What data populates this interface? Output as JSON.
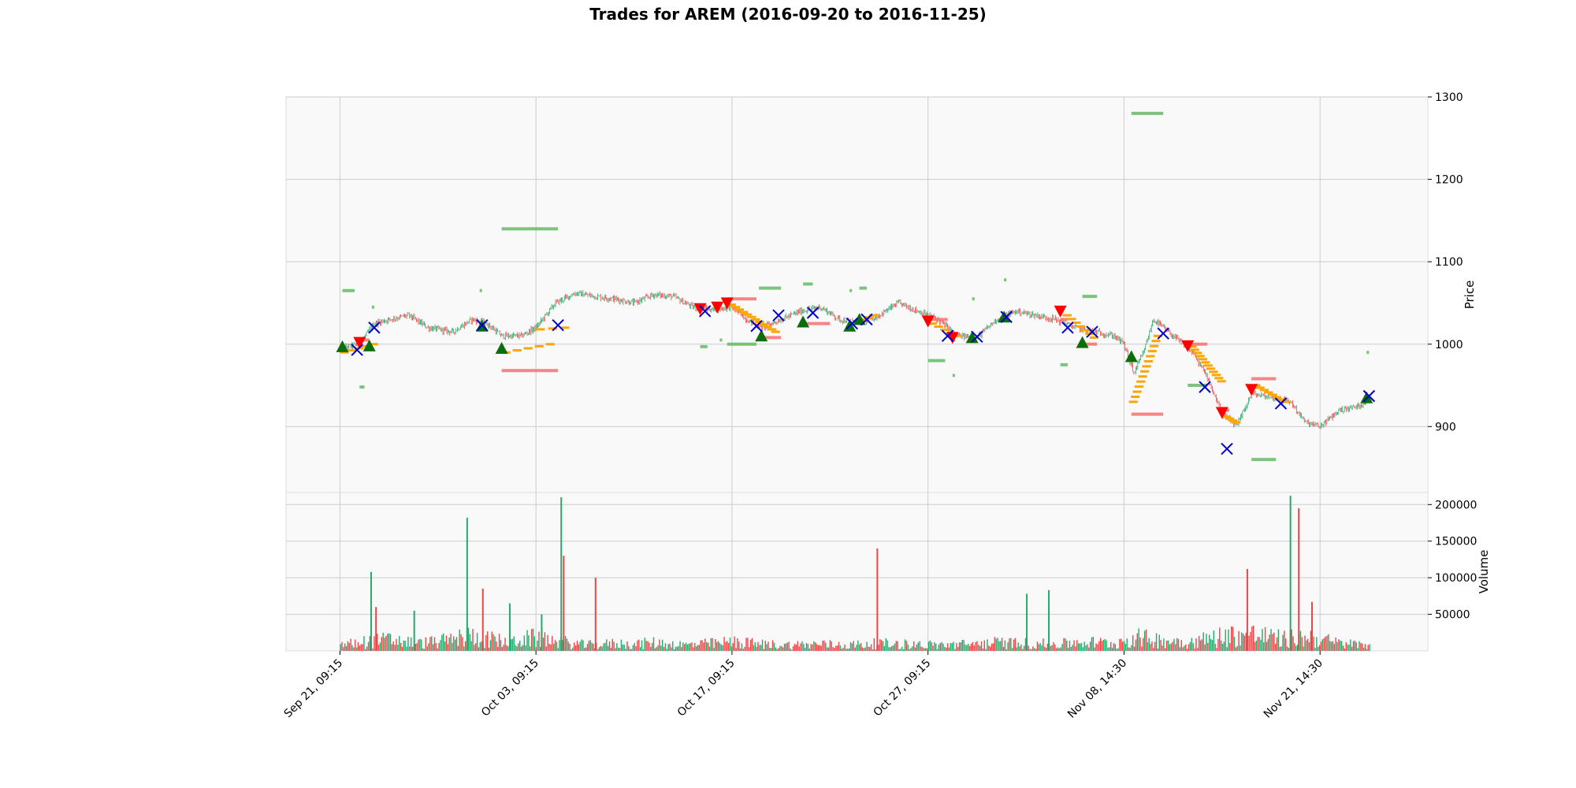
{
  "chart_data": {
    "type": "candlestick",
    "title": "Trades for AREM (2016-09-20 to 2016-11-25)",
    "price_axis": {
      "label": "Price",
      "ticks": [
        900,
        1000,
        1100,
        1200,
        1300
      ],
      "range": [
        820,
        1300
      ]
    },
    "volume_axis": {
      "label": "Volume",
      "ticks": [
        50000,
        100000,
        150000,
        200000
      ],
      "range": [
        0,
        210000
      ]
    },
    "x_tick_labels": [
      "Sep 21, 09:15",
      "Oct 03, 09:15",
      "Oct 17, 09:15",
      "Oct 27, 09:15",
      "Nov 08, 14:30",
      "Nov 21, 14:30"
    ],
    "x_tick_positions": [
      0,
      400,
      800,
      1200,
      1600,
      2000
    ],
    "x_range": [
      -110,
      2220
    ],
    "grid": true,
    "colors": {
      "up": "#26a96c",
      "down": "#ef4444",
      "entry_long": "#0a6e0a",
      "entry_short": "#ff0000",
      "exit": "#0000cc",
      "trail": "#ffa500",
      "target": "#5cb85c",
      "stop": "#f87171",
      "panel_bg": "#f9f9f9",
      "grid": "#cccccc"
    },
    "price_path": [
      [
        0,
        995
      ],
      [
        40,
        1000
      ],
      [
        70,
        1025
      ],
      [
        100,
        1030
      ],
      [
        140,
        1035
      ],
      [
        180,
        1020
      ],
      [
        230,
        1015
      ],
      [
        270,
        1030
      ],
      [
        300,
        1025
      ],
      [
        330,
        1010
      ],
      [
        370,
        1010
      ],
      [
        400,
        1020
      ],
      [
        440,
        1050
      ],
      [
        480,
        1062
      ],
      [
        520,
        1058
      ],
      [
        560,
        1055
      ],
      [
        600,
        1050
      ],
      [
        640,
        1060
      ],
      [
        680,
        1058
      ],
      [
        720,
        1045
      ],
      [
        760,
        1042
      ],
      [
        800,
        1045
      ],
      [
        830,
        1030
      ],
      [
        860,
        1020
      ],
      [
        900,
        1030
      ],
      [
        940,
        1040
      ],
      [
        980,
        1045
      ],
      [
        1020,
        1030
      ],
      [
        1060,
        1025
      ],
      [
        1100,
        1035
      ],
      [
        1140,
        1050
      ],
      [
        1180,
        1040
      ],
      [
        1220,
        1030
      ],
      [
        1260,
        1010
      ],
      [
        1300,
        1008
      ],
      [
        1340,
        1030
      ],
      [
        1380,
        1040
      ],
      [
        1420,
        1035
      ],
      [
        1460,
        1030
      ],
      [
        1500,
        1020
      ],
      [
        1540,
        1015
      ],
      [
        1580,
        1010
      ],
      [
        1600,
        1000
      ],
      [
        1620,
        965
      ],
      [
        1640,
        990
      ],
      [
        1660,
        1030
      ],
      [
        1700,
        1010
      ],
      [
        1740,
        990
      ],
      [
        1770,
        960
      ],
      [
        1800,
        915
      ],
      [
        1830,
        900
      ],
      [
        1860,
        940
      ],
      [
        1900,
        935
      ],
      [
        1940,
        930
      ],
      [
        1970,
        905
      ],
      [
        2000,
        900
      ],
      [
        2040,
        920
      ],
      [
        2080,
        925
      ],
      [
        2100,
        935
      ]
    ],
    "volume_path": [
      [
        0,
        8000
      ],
      [
        50,
        12000
      ],
      [
        100,
        15000
      ],
      [
        160,
        10000
      ],
      [
        220,
        14000
      ],
      [
        260,
        20000
      ],
      [
        300,
        16000
      ],
      [
        340,
        12000
      ],
      [
        400,
        18000
      ],
      [
        440,
        14000
      ],
      [
        480,
        9000
      ],
      [
        520,
        8000
      ],
      [
        560,
        10000
      ],
      [
        600,
        9000
      ],
      [
        640,
        11000
      ],
      [
        700,
        8000
      ],
      [
        760,
        10000
      ],
      [
        800,
        12000
      ],
      [
        860,
        9000
      ],
      [
        920,
        8000
      ],
      [
        980,
        9000
      ],
      [
        1040,
        8000
      ],
      [
        1100,
        10000
      ],
      [
        1160,
        9000
      ],
      [
        1220,
        8000
      ],
      [
        1280,
        9000
      ],
      [
        1340,
        11000
      ],
      [
        1400,
        10000
      ],
      [
        1460,
        9000
      ],
      [
        1520,
        12000
      ],
      [
        1580,
        10000
      ],
      [
        1620,
        18000
      ],
      [
        1680,
        14000
      ],
      [
        1740,
        12000
      ],
      [
        1800,
        20000
      ],
      [
        1860,
        22000
      ],
      [
        1920,
        16000
      ],
      [
        1980,
        18000
      ],
      [
        2040,
        10000
      ],
      [
        2100,
        8000
      ]
    ],
    "volume_spikes": [
      {
        "x": 62,
        "v": 108000,
        "dir": "up"
      },
      {
        "x": 72,
        "v": 60000,
        "dir": "down"
      },
      {
        "x": 150,
        "v": 55000,
        "dir": "up"
      },
      {
        "x": 258,
        "v": 182000,
        "dir": "up"
      },
      {
        "x": 290,
        "v": 85000,
        "dir": "down"
      },
      {
        "x": 345,
        "v": 65000,
        "dir": "up"
      },
      {
        "x": 410,
        "v": 50000,
        "dir": "up"
      },
      {
        "x": 450,
        "v": 210000,
        "dir": "up"
      },
      {
        "x": 455,
        "v": 130000,
        "dir": "down"
      },
      {
        "x": 520,
        "v": 100000,
        "dir": "down"
      },
      {
        "x": 1095,
        "v": 140000,
        "dir": "down"
      },
      {
        "x": 1400,
        "v": 78000,
        "dir": "up"
      },
      {
        "x": 1445,
        "v": 83000,
        "dir": "up"
      },
      {
        "x": 1850,
        "v": 112000,
        "dir": "down"
      },
      {
        "x": 1938,
        "v": 212000,
        "dir": "up"
      },
      {
        "x": 1955,
        "v": 195000,
        "dir": "down"
      },
      {
        "x": 1982,
        "v": 67000,
        "dir": "down"
      }
    ],
    "entries_long": [
      {
        "x": 5,
        "y": 997
      },
      {
        "x": 60,
        "y": 998
      },
      {
        "x": 290,
        "y": 1022
      },
      {
        "x": 330,
        "y": 995
      },
      {
        "x": 860,
        "y": 1010
      },
      {
        "x": 945,
        "y": 1027
      },
      {
        "x": 1040,
        "y": 1022
      },
      {
        "x": 1060,
        "y": 1030
      },
      {
        "x": 1290,
        "y": 1008
      },
      {
        "x": 1355,
        "y": 1033
      },
      {
        "x": 1515,
        "y": 1002
      },
      {
        "x": 1615,
        "y": 985
      },
      {
        "x": 2095,
        "y": 935
      }
    ],
    "entries_short": [
      {
        "x": 40,
        "y": 1002
      },
      {
        "x": 735,
        "y": 1043
      },
      {
        "x": 770,
        "y": 1045
      },
      {
        "x": 790,
        "y": 1050
      },
      {
        "x": 1200,
        "y": 1028
      },
      {
        "x": 1250,
        "y": 1008
      },
      {
        "x": 1470,
        "y": 1040
      },
      {
        "x": 1730,
        "y": 998
      },
      {
        "x": 1800,
        "y": 917
      },
      {
        "x": 1860,
        "y": 945
      }
    ],
    "exits": [
      {
        "x": 35,
        "y": 993
      },
      {
        "x": 70,
        "y": 1020
      },
      {
        "x": 290,
        "y": 1023
      },
      {
        "x": 445,
        "y": 1023
      },
      {
        "x": 745,
        "y": 1040
      },
      {
        "x": 850,
        "y": 1022
      },
      {
        "x": 895,
        "y": 1035
      },
      {
        "x": 965,
        "y": 1038
      },
      {
        "x": 1045,
        "y": 1025
      },
      {
        "x": 1075,
        "y": 1030
      },
      {
        "x": 1240,
        "y": 1010
      },
      {
        "x": 1300,
        "y": 1009
      },
      {
        "x": 1360,
        "y": 1033
      },
      {
        "x": 1485,
        "y": 1020
      },
      {
        "x": 1535,
        "y": 1015
      },
      {
        "x": 1680,
        "y": 1013
      },
      {
        "x": 1765,
        "y": 948
      },
      {
        "x": 1810,
        "y": 873
      },
      {
        "x": 1920,
        "y": 928
      },
      {
        "x": 2100,
        "y": 937
      }
    ],
    "trail_bursts": [
      {
        "x0": 0,
        "y0": 990,
        "x1": 60,
        "y1": 1000,
        "n": 5
      },
      {
        "x0": 330,
        "y0": 990,
        "x1": 420,
        "y1": 1000,
        "n": 5
      },
      {
        "x0": 400,
        "y0": 1018,
        "x1": 450,
        "y1": 1020,
        "n": 3
      },
      {
        "x0": 790,
        "y0": 1048,
        "x1": 880,
        "y1": 1015,
        "n": 12
      },
      {
        "x0": 1045,
        "y0": 1025,
        "x1": 1080,
        "y1": 1035,
        "n": 5
      },
      {
        "x0": 1200,
        "y0": 1025,
        "x1": 1250,
        "y1": 1010,
        "n": 5
      },
      {
        "x0": 1475,
        "y0": 1035,
        "x1": 1530,
        "y1": 1008,
        "n": 7
      },
      {
        "x0": 1610,
        "y0": 930,
        "x1": 1660,
        "y1": 1010,
        "n": 14
      },
      {
        "x0": 1730,
        "y0": 997,
        "x1": 1790,
        "y1": 955,
        "n": 12
      },
      {
        "x0": 1800,
        "y0": 912,
        "x1": 1820,
        "y1": 905,
        "n": 4
      },
      {
        "x0": 1860,
        "y0": 950,
        "x1": 1920,
        "y1": 930,
        "n": 8
      }
    ],
    "target_levels": [
      {
        "x0": 5,
        "x1": 30,
        "y": 1065
      },
      {
        "x0": 40,
        "x1": 50,
        "y": 948
      },
      {
        "x0": 65,
        "x1": 70,
        "y": 1045
      },
      {
        "x0": 285,
        "x1": 290,
        "y": 1065
      },
      {
        "x0": 330,
        "x1": 445,
        "y": 1140
      },
      {
        "x0": 735,
        "x1": 750,
        "y": 997
      },
      {
        "x0": 775,
        "x1": 780,
        "y": 1005
      },
      {
        "x0": 790,
        "x1": 850,
        "y": 1000
      },
      {
        "x0": 855,
        "x1": 900,
        "y": 1068
      },
      {
        "x0": 945,
        "x1": 965,
        "y": 1073
      },
      {
        "x0": 1040,
        "x1": 1045,
        "y": 1065
      },
      {
        "x0": 1060,
        "x1": 1075,
        "y": 1068
      },
      {
        "x0": 1200,
        "x1": 1235,
        "y": 980
      },
      {
        "x0": 1250,
        "x1": 1255,
        "y": 962
      },
      {
        "x0": 1290,
        "x1": 1295,
        "y": 1055
      },
      {
        "x0": 1355,
        "x1": 1360,
        "y": 1078
      },
      {
        "x0": 1470,
        "x1": 1485,
        "y": 975
      },
      {
        "x0": 1515,
        "x1": 1545,
        "y": 1058
      },
      {
        "x0": 1615,
        "x1": 1680,
        "y": 1280
      },
      {
        "x0": 1730,
        "x1": 1770,
        "y": 950
      },
      {
        "x0": 1860,
        "x1": 1910,
        "y": 860
      },
      {
        "x0": 2095,
        "x1": 2100,
        "y": 990
      }
    ],
    "stop_levels": [
      {
        "x0": 35,
        "x1": 60,
        "y": 1005
      },
      {
        "x0": 330,
        "x1": 445,
        "y": 968
      },
      {
        "x0": 790,
        "x1": 850,
        "y": 1055
      },
      {
        "x0": 860,
        "x1": 900,
        "y": 1008
      },
      {
        "x0": 945,
        "x1": 1000,
        "y": 1025
      },
      {
        "x0": 1200,
        "x1": 1240,
        "y": 1030
      },
      {
        "x0": 1250,
        "x1": 1255,
        "y": 1005
      },
      {
        "x0": 1470,
        "x1": 1485,
        "y": 1030
      },
      {
        "x0": 1515,
        "x1": 1545,
        "y": 1000
      },
      {
        "x0": 1615,
        "x1": 1680,
        "y": 915
      },
      {
        "x0": 1730,
        "x1": 1770,
        "y": 1000
      },
      {
        "x0": 1800,
        "x1": 1815,
        "y": 920
      },
      {
        "x0": 1860,
        "x1": 1910,
        "y": 958
      }
    ]
  }
}
